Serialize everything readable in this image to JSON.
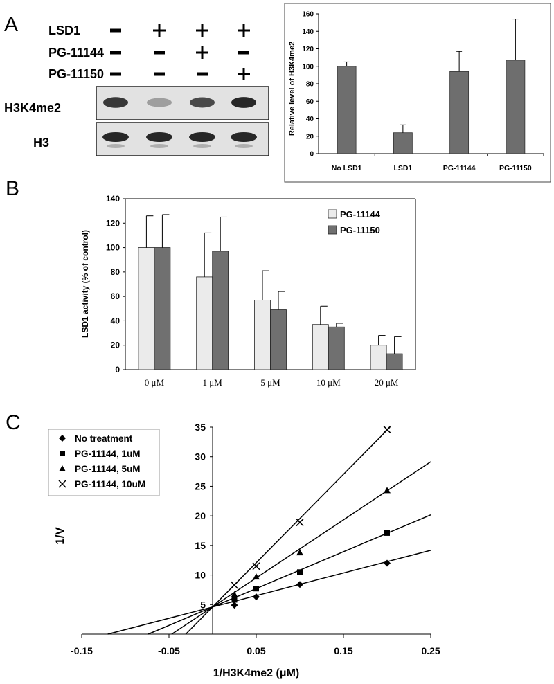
{
  "panel_labels": [
    "A",
    "B",
    "C"
  ],
  "panel_a": {
    "row_labels": [
      "LSD1",
      "PG-11144",
      "PG-11150"
    ],
    "signs": [
      [
        "−",
        "+",
        "+",
        "+"
      ],
      [
        "−",
        "−",
        "+",
        "−"
      ],
      [
        "−",
        "−",
        "−",
        "+"
      ]
    ],
    "blot_labels": [
      "H3K4me2",
      "H3"
    ],
    "h3k4me2_band_intensity": [
      0.85,
      0.25,
      0.75,
      0.95
    ],
    "h3_band_intensity": [
      0.95,
      0.95,
      0.95,
      0.95
    ]
  },
  "chart_data": [
    {
      "id": "A-bar",
      "type": "bar",
      "categories": [
        "No LSD1",
        "LSD1",
        "PG-11144",
        "PG-11150"
      ],
      "values": [
        100,
        24,
        94,
        107
      ],
      "errors": [
        5,
        9,
        23,
        47
      ],
      "ylabel": "Relative level of H3K4me2",
      "xlabel": "",
      "ylim": [
        0,
        160
      ],
      "yticks": [
        "0",
        "20",
        "40",
        "60",
        "80",
        "100",
        "120",
        "140",
        "160"
      ],
      "grid": false,
      "color": "#6e6e6e"
    },
    {
      "id": "B-bar",
      "type": "bar",
      "categories": [
        "0 μM",
        "1 μM",
        "5 μM",
        "10 μM",
        "20 μM"
      ],
      "series": [
        {
          "name": "PG-11144",
          "values": [
            100,
            76,
            57,
            37,
            20
          ],
          "errors": [
            26,
            36,
            24,
            15,
            8
          ],
          "color": "#ebebeb"
        },
        {
          "name": "PG-11150",
          "values": [
            100,
            97,
            49,
            35,
            13
          ],
          "errors": [
            27,
            28,
            15,
            3,
            14
          ],
          "color": "#707070"
        }
      ],
      "ylabel": "LSD1 activity (% of control)",
      "xlabel": "",
      "ylim": [
        0,
        140
      ],
      "yticks": [
        "0",
        "20",
        "40",
        "60",
        "80",
        "100",
        "120",
        "140"
      ],
      "legend_position": "top-right",
      "grid": false
    },
    {
      "id": "C-scatter",
      "type": "scatter",
      "xlabel": "1/H3K4me2 (μM)",
      "ylabel": "1/V",
      "xlim": [
        -0.15,
        0.25
      ],
      "ylim": [
        0,
        35
      ],
      "xticks": [
        "-0.15",
        "-0.05",
        "0.05",
        "0.15",
        "0.25"
      ],
      "yticks": [
        "5",
        "10",
        "15",
        "20",
        "25",
        "30",
        "35"
      ],
      "legend_position": "top-left",
      "series": [
        {
          "name": "No treatment",
          "marker": "diamond",
          "x": [
            0.025,
            0.05,
            0.1,
            0.2
          ],
          "y": [
            4.9,
            6.3,
            8.4,
            12.0
          ]
        },
        {
          "name": "PG-11144, 1uM",
          "marker": "square",
          "x": [
            0.025,
            0.05,
            0.1,
            0.2
          ],
          "y": [
            5.8,
            7.7,
            10.5,
            17.1
          ]
        },
        {
          "name": "PG-11144, 5uM",
          "marker": "triangle",
          "x": [
            0.025,
            0.05,
            0.1,
            0.2
          ],
          "y": [
            6.7,
            9.7,
            13.8,
            24.3
          ]
        },
        {
          "name": "PG-11144, 10uM",
          "marker": "x",
          "x": [
            0.025,
            0.05,
            0.1,
            0.2
          ],
          "y": [
            8.3,
            11.5,
            18.9,
            34.6
          ]
        }
      ],
      "fit_lines": [
        {
          "intercept": 4.6,
          "slope": 38.3
        },
        {
          "intercept": 4.6,
          "slope": 62.3
        },
        {
          "intercept": 4.6,
          "slope": 98.2
        },
        {
          "intercept": 4.6,
          "slope": 149.5
        }
      ]
    }
  ]
}
